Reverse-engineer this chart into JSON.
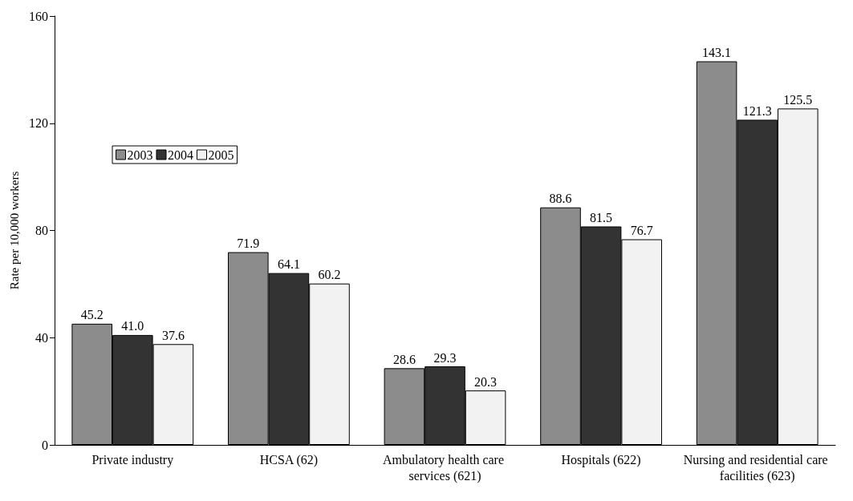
{
  "chart_data": {
    "type": "bar",
    "ylabel": "Rate per 10,000 workers",
    "categories": [
      "Private industry",
      "HCSA (62)",
      "Ambulatory health care services (621)",
      "Hospitals (622)",
      "Nursing and residential care facilities (623)"
    ],
    "series": [
      {
        "name": "2003",
        "color": "#8c8c8c",
        "values": [
          45.2,
          71.9,
          28.6,
          88.6,
          143.1
        ],
        "value_labels": [
          "45.2",
          "71.9",
          "28.6",
          "88.6",
          "143.1"
        ]
      },
      {
        "name": "2004",
        "color": "#333333",
        "values": [
          41.0,
          64.1,
          29.3,
          81.5,
          121.3
        ],
        "value_labels": [
          "41.0",
          "64.1",
          "29.3",
          "81.5",
          "121.3"
        ]
      },
      {
        "name": "2005",
        "color": "#f2f2f2",
        "values": [
          37.6,
          60.2,
          20.3,
          76.7,
          125.5
        ],
        "value_labels": [
          "37.6",
          "60.2",
          "20.3",
          "76.7",
          "125.5"
        ]
      }
    ],
    "ylim": [
      0,
      160
    ],
    "yticks": [
      0,
      40,
      80,
      120,
      160
    ],
    "grid": false,
    "legend": "top left"
  }
}
